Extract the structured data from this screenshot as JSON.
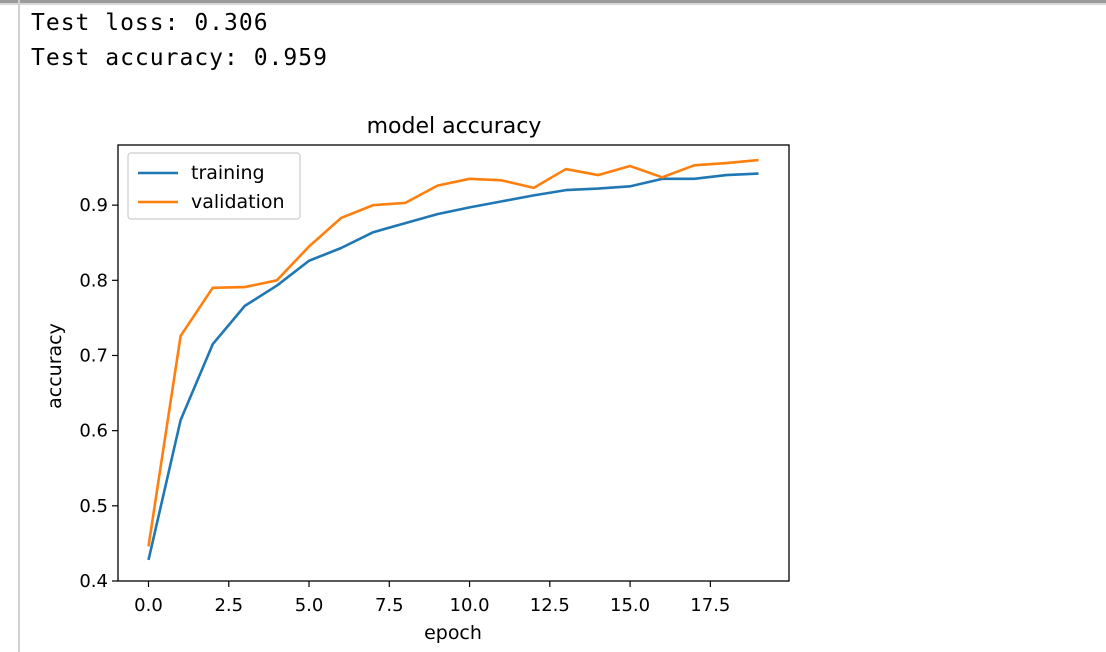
{
  "output": {
    "lines": [
      "Test loss: 0.306",
      "Test accuracy: 0.959"
    ]
  },
  "chart_data": {
    "type": "line",
    "title": "model accuracy",
    "xlabel": "epoch",
    "ylabel": "accuracy",
    "xlim": [
      -0.95,
      19.95
    ],
    "ylim": [
      0.4,
      0.98
    ],
    "xticks": [
      0.0,
      2.5,
      5.0,
      7.5,
      10.0,
      12.5,
      15.0,
      17.5
    ],
    "xtick_labels": [
      "0.0",
      "2.5",
      "5.0",
      "7.5",
      "10.0",
      "12.5",
      "15.0",
      "17.5"
    ],
    "yticks": [
      0.4,
      0.5,
      0.6,
      0.7,
      0.8,
      0.9
    ],
    "ytick_labels": [
      "0.4",
      "0.5",
      "0.6",
      "0.7",
      "0.8",
      "0.9"
    ],
    "legend_position": "upper left",
    "grid": false,
    "x": [
      0,
      1,
      2,
      3,
      4,
      5,
      6,
      7,
      8,
      9,
      10,
      11,
      12,
      13,
      14,
      15,
      16,
      17,
      18,
      19
    ],
    "series": [
      {
        "name": "training",
        "color": "#1f77b4",
        "values": [
          0.428,
          0.614,
          0.715,
          0.766,
          0.793,
          0.826,
          0.843,
          0.864,
          0.876,
          0.888,
          0.897,
          0.905,
          0.913,
          0.92,
          0.922,
          0.925,
          0.935,
          0.935,
          0.94,
          0.942
        ]
      },
      {
        "name": "validation",
        "color": "#ff7f0e",
        "values": [
          0.446,
          0.726,
          0.79,
          0.791,
          0.8,
          0.845,
          0.883,
          0.9,
          0.903,
          0.926,
          0.935,
          0.933,
          0.923,
          0.948,
          0.94,
          0.952,
          0.937,
          0.953,
          0.956,
          0.96
        ]
      }
    ]
  }
}
